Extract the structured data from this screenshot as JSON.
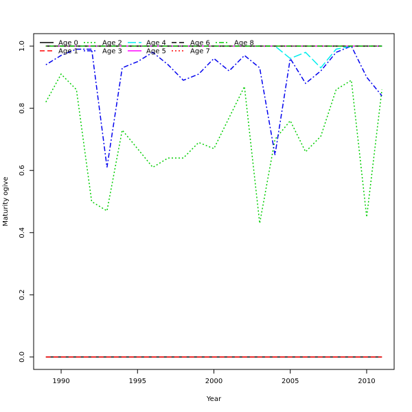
{
  "chart_data": {
    "type": "line",
    "title": "",
    "xlabel": "Year",
    "ylabel": "Maturity ogive",
    "xlim": [
      1988.2,
      2011.8
    ],
    "ylim": [
      -0.04,
      1.04
    ],
    "xticks": [
      1990,
      1995,
      2000,
      2005,
      2010
    ],
    "yticks": [
      0.0,
      0.2,
      0.4,
      0.6,
      0.8,
      1.0
    ],
    "ytick_labels": [
      "0.0",
      "0.2",
      "0.4",
      "0.6",
      "0.8",
      "1.0"
    ],
    "grid": false,
    "legend_position": "top-left",
    "x": [
      1989,
      1990,
      1991,
      1992,
      1993,
      1994,
      1995,
      1996,
      1997,
      1998,
      1999,
      2000,
      2001,
      2002,
      2003,
      2004,
      2005,
      2006,
      2007,
      2008,
      2009,
      2010,
      2011
    ],
    "series": [
      {
        "name": "Age 0",
        "color": "#000000",
        "dash": "solid",
        "values": [
          0,
          0,
          0,
          0,
          0,
          0,
          0,
          0,
          0,
          0,
          0,
          0,
          0,
          0,
          0,
          0,
          0,
          0,
          0,
          0,
          0,
          0,
          0
        ]
      },
      {
        "name": "Age 1",
        "color": "#ff0000",
        "dash": "dashed",
        "values": [
          0,
          0,
          0,
          0,
          0,
          0,
          0,
          0,
          0,
          0,
          0,
          0,
          0,
          0,
          0,
          0,
          0,
          0,
          0,
          0,
          0,
          0,
          0
        ]
      },
      {
        "name": "Age 2",
        "color": "#00cd00",
        "dash": "dotted",
        "values": [
          0.82,
          0.91,
          0.86,
          0.5,
          0.47,
          0.73,
          0.67,
          0.61,
          0.64,
          0.64,
          0.69,
          0.67,
          0.77,
          0.87,
          0.43,
          0.7,
          0.76,
          0.66,
          0.71,
          0.86,
          0.89,
          0.45,
          0.86
        ]
      },
      {
        "name": "Age 3",
        "color": "#0000ee",
        "dash": "dotdash",
        "values": [
          0.94,
          0.97,
          0.99,
          0.99,
          0.61,
          0.93,
          0.95,
          0.98,
          0.94,
          0.89,
          0.91,
          0.96,
          0.92,
          0.97,
          0.93,
          0.65,
          0.96,
          0.88,
          0.92,
          0.98,
          1.0,
          0.9,
          0.84
        ]
      },
      {
        "name": "Age 4",
        "color": "#00eeee",
        "dash": "longdash",
        "values": [
          1,
          1,
          1,
          1,
          1,
          1,
          1,
          1,
          1,
          1,
          1,
          1,
          1,
          1,
          1,
          1,
          0.96,
          0.98,
          0.93,
          0.99,
          1,
          1,
          1
        ]
      },
      {
        "name": "Age 5",
        "color": "#ff00ff",
        "dash": "solid",
        "values": [
          1,
          1,
          1,
          1,
          1,
          1,
          1,
          1,
          1,
          1,
          1,
          1,
          1,
          1,
          1,
          1,
          1,
          1,
          1,
          1,
          1,
          1,
          1
        ]
      },
      {
        "name": "Age 6",
        "color": "#000000",
        "dash": "dashed",
        "values": [
          1,
          1,
          1,
          1,
          1,
          1,
          1,
          1,
          1,
          1,
          1,
          1,
          1,
          1,
          1,
          1,
          1,
          1,
          1,
          1,
          1,
          1,
          1
        ]
      },
      {
        "name": "Age 7",
        "color": "#ff0000",
        "dash": "dotted",
        "values": [
          1,
          1,
          1,
          1,
          1,
          1,
          1,
          1,
          1,
          1,
          1,
          1,
          1,
          1,
          1,
          1,
          1,
          1,
          1,
          1,
          1,
          1,
          1
        ]
      },
      {
        "name": "Age 8",
        "color": "#00cd00",
        "dash": "dotdash",
        "values": [
          1,
          1,
          1,
          1,
          1,
          1,
          1,
          1,
          1,
          1,
          1,
          1,
          1,
          1,
          1,
          1,
          1,
          1,
          1,
          1,
          1,
          1,
          1
        ]
      }
    ]
  }
}
